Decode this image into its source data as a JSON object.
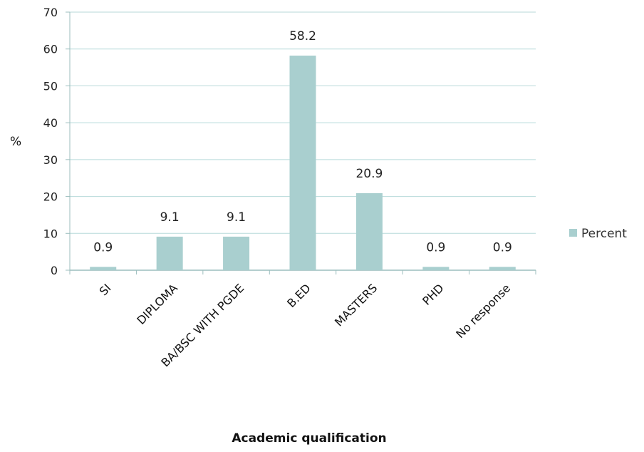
{
  "chart_data": {
    "type": "bar",
    "categories": [
      "SI",
      "DIPLOMA",
      "BA/BSC WITH PGDE",
      "B.ED",
      "MASTERS",
      "PHD",
      "No response"
    ],
    "series": [
      {
        "name": "Percent",
        "values": [
          0.9,
          9.1,
          9.1,
          58.2,
          20.9,
          0.9,
          0.9
        ]
      }
    ],
    "data_labels": [
      "0.9",
      "9.1",
      "9.1",
      "58.2",
      "20.9",
      "0.9",
      "0.9"
    ],
    "title": "",
    "xlabel": "Academic qualification",
    "ylabel": "%",
    "ylim": [
      0,
      70
    ],
    "yticks": [
      0,
      10,
      20,
      30,
      40,
      50,
      60,
      70
    ],
    "grid": true,
    "legend_position": "right",
    "colors": {
      "bar": "#a9cfcf",
      "grid": "#b7dada",
      "axis": "#9bbdbd"
    }
  }
}
